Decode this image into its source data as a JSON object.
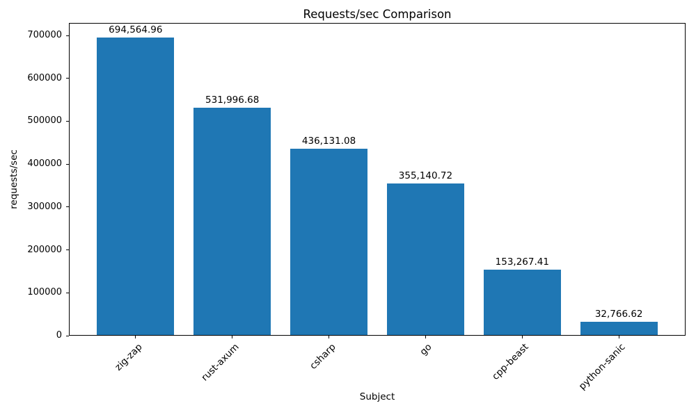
{
  "chart_data": {
    "type": "bar",
    "title": "Requests/sec Comparison",
    "xlabel": "Subject",
    "ylabel": "requests/sec",
    "categories": [
      "zig-zap",
      "rust-axum",
      "csharp",
      "go",
      "cpp-beast",
      "python-sanic"
    ],
    "values": [
      694564.96,
      531996.68,
      436131.08,
      355140.72,
      153267.41,
      32766.62
    ],
    "value_labels": [
      "694,564.96",
      "531,996.68",
      "436,131.08",
      "355,140.72",
      "153,267.41",
      "32,766.62"
    ],
    "bar_color": "#1f77b4",
    "text_color": "#000000",
    "ylim": [
      0,
      729293
    ],
    "yticks": [
      0,
      100000,
      200000,
      300000,
      400000,
      500000,
      600000,
      700000
    ],
    "ytick_labels": [
      "0",
      "100000",
      "200000",
      "300000",
      "400000",
      "500000",
      "600000",
      "700000"
    ],
    "bar_width_fraction": 0.8,
    "x_margin_units": 0.69,
    "xtick_rotation_deg": 45,
    "grid": false,
    "legend": "none"
  }
}
